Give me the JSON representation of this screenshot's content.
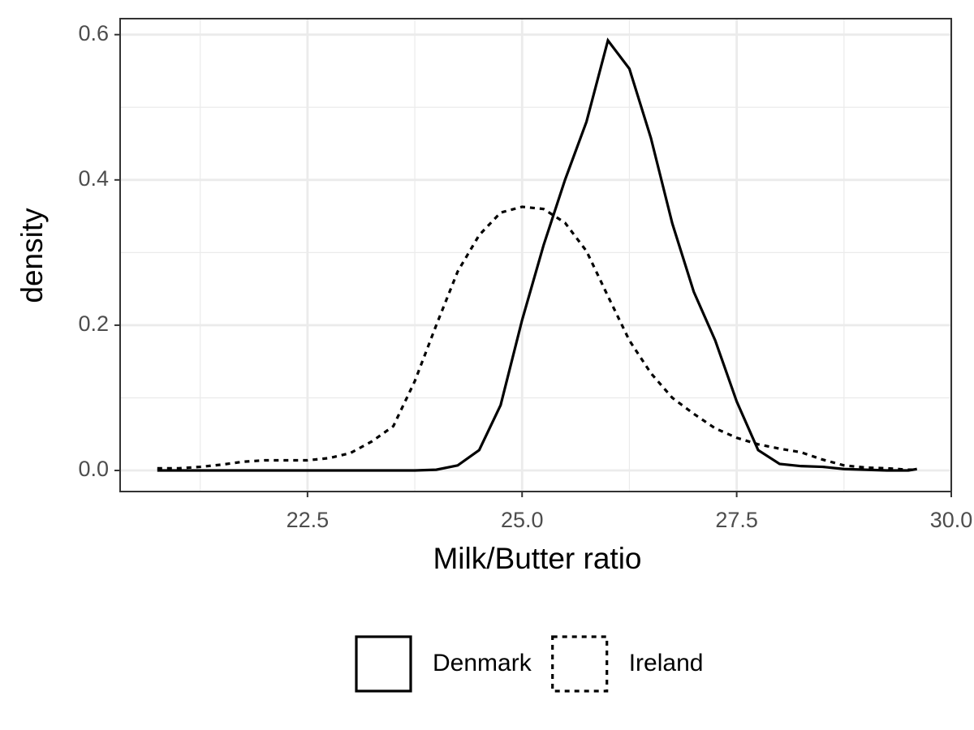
{
  "chart_data": {
    "type": "line",
    "x_label": "Milk/Butter ratio",
    "y_label": "density",
    "x": [
      20.75,
      21.0,
      21.25,
      21.5,
      21.75,
      22.0,
      22.25,
      22.5,
      22.75,
      23.0,
      23.25,
      23.5,
      23.75,
      24.0,
      24.25,
      24.5,
      24.75,
      25.0,
      25.25,
      25.5,
      25.75,
      26.0,
      26.25,
      26.5,
      26.75,
      27.0,
      27.25,
      27.5,
      27.75,
      28.0,
      28.25,
      28.5,
      28.75,
      29.0,
      29.25,
      29.5,
      29.6
    ],
    "series": [
      {
        "name": "Denmark",
        "color": "#000000",
        "linetype": "solid",
        "values": [
          0,
          0,
          0,
          0,
          0,
          0,
          0,
          0,
          0,
          0,
          0,
          0,
          0,
          0.001,
          0.007,
          0.028,
          0.09,
          0.207,
          0.31,
          0.4,
          0.48,
          0.592,
          0.553,
          0.458,
          0.34,
          0.246,
          0.179,
          0.095,
          0.028,
          0.009,
          0.006,
          0.005,
          0.002,
          0.001,
          0,
          0,
          0.002
        ]
      },
      {
        "name": "Ireland",
        "color": "#000000",
        "linetype": "dashed",
        "values": [
          0.003,
          0.003,
          0.005,
          0.008,
          0.012,
          0.014,
          0.014,
          0.014,
          0.017,
          0.024,
          0.04,
          0.061,
          0.123,
          0.2,
          0.274,
          0.324,
          0.355,
          0.363,
          0.36,
          0.341,
          0.302,
          0.24,
          0.179,
          0.134,
          0.1,
          0.078,
          0.058,
          0.045,
          0.036,
          0.03,
          0.025,
          0.015,
          0.007,
          0.004,
          0.003,
          0.001,
          0.001
        ]
      }
    ],
    "xlim": [
      20.317,
      30.0
    ],
    "xticks": [
      {
        "value": 22.5,
        "label": "22.5"
      },
      {
        "value": 25,
        "label": "25.0"
      },
      {
        "value": 27.5,
        "label": "27.5"
      },
      {
        "value": 30,
        "label": "30.0"
      }
    ],
    "ylim": [
      -0.029,
      0.622
    ],
    "yticks": [
      {
        "value": 0,
        "label": "0.0"
      },
      0.2,
      0.4,
      0.6
    ],
    "grid": true,
    "legend": "bottom"
  }
}
